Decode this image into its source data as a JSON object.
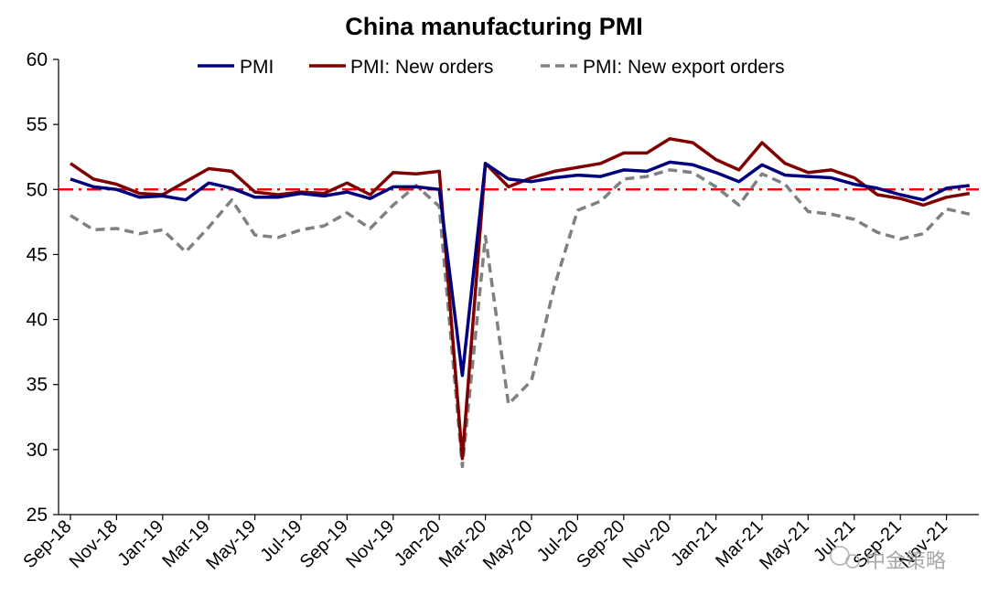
{
  "chart_data": {
    "type": "line",
    "title": "China manufacturing PMI",
    "xlabel": "",
    "ylabel": "",
    "ylim": [
      25,
      60
    ],
    "yticks": [
      25,
      30,
      35,
      40,
      45,
      50,
      55,
      60
    ],
    "reference_line": {
      "value": 50,
      "color": "#ff0000",
      "style": "dash-dot"
    },
    "x_tick_labels": [
      "Sep-18",
      "Nov-18",
      "Jan-19",
      "Mar-19",
      "May-19",
      "Jul-19",
      "Sep-19",
      "Nov-19",
      "Jan-20",
      "Mar-20",
      "May-20",
      "Jul-20",
      "Sep-20",
      "Nov-20",
      "Jan-21",
      "Mar-21",
      "May-21",
      "Jul-21",
      "Sep-21",
      "Nov-21"
    ],
    "x": [
      "Sep-18",
      "Oct-18",
      "Nov-18",
      "Dec-18",
      "Jan-19",
      "Feb-19",
      "Mar-19",
      "Apr-19",
      "May-19",
      "Jun-19",
      "Jul-19",
      "Aug-19",
      "Sep-19",
      "Oct-19",
      "Nov-19",
      "Dec-19",
      "Jan-20",
      "Feb-20",
      "Mar-20",
      "Apr-20",
      "May-20",
      "Jun-20",
      "Jul-20",
      "Aug-20",
      "Sep-20",
      "Oct-20",
      "Nov-20",
      "Dec-20",
      "Jan-21",
      "Feb-21",
      "Mar-21",
      "Apr-21",
      "May-21",
      "Jun-21",
      "Jul-21",
      "Aug-21",
      "Sep-21",
      "Oct-21",
      "Nov-21",
      "Dec-21"
    ],
    "legend_position": "top",
    "series": [
      {
        "name": "PMI",
        "color": "#00007f",
        "style": "solid",
        "values": [
          50.8,
          50.2,
          50.0,
          49.4,
          49.5,
          49.2,
          50.5,
          50.1,
          49.4,
          49.4,
          49.7,
          49.5,
          49.8,
          49.3,
          50.2,
          50.2,
          50.0,
          35.7,
          52.0,
          50.8,
          50.6,
          50.9,
          51.1,
          51.0,
          51.5,
          51.4,
          52.1,
          51.9,
          51.3,
          50.6,
          51.9,
          51.1,
          51.0,
          50.9,
          50.4,
          50.1,
          49.6,
          49.2,
          50.1,
          50.3
        ]
      },
      {
        "name": "PMI: New orders",
        "color": "#7f0000",
        "style": "solid",
        "values": [
          52.0,
          50.8,
          50.4,
          49.7,
          49.6,
          50.6,
          51.6,
          51.4,
          49.8,
          49.6,
          49.8,
          49.7,
          50.5,
          49.6,
          51.3,
          51.2,
          51.4,
          29.3,
          52.0,
          50.2,
          50.9,
          51.4,
          51.7,
          52.0,
          52.8,
          52.8,
          53.9,
          53.6,
          52.3,
          51.5,
          53.6,
          52.0,
          51.3,
          51.5,
          50.9,
          49.6,
          49.3,
          48.8,
          49.4,
          49.7
        ]
      },
      {
        "name": "PMI: New export orders",
        "color": "#808080",
        "style": "dashed",
        "values": [
          48.0,
          46.9,
          47.0,
          46.6,
          46.9,
          45.2,
          47.1,
          49.2,
          46.5,
          46.3,
          46.9,
          47.2,
          48.2,
          47.0,
          48.8,
          50.3,
          48.7,
          28.7,
          46.4,
          33.5,
          35.3,
          42.6,
          48.4,
          49.1,
          50.8,
          51.0,
          51.5,
          51.3,
          50.2,
          48.8,
          51.2,
          50.4,
          48.3,
          48.1,
          47.7,
          46.7,
          46.2,
          46.6,
          48.5,
          48.1
        ]
      }
    ],
    "watermark": "中金策略"
  }
}
